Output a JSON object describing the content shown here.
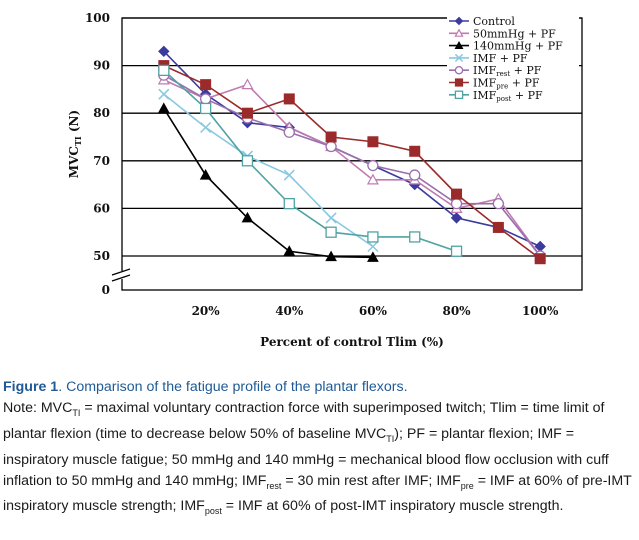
{
  "chart_data": {
    "type": "line",
    "x": [
      10,
      20,
      30,
      40,
      50,
      60,
      70,
      80,
      90,
      100
    ],
    "xticks": [
      {
        "value": 20,
        "label": "20%"
      },
      {
        "value": 40,
        "label": "40%"
      },
      {
        "value": 60,
        "label": "60%"
      },
      {
        "value": 80,
        "label": "80%"
      },
      {
        "value": 100,
        "label": "100%"
      }
    ],
    "yticks": [
      {
        "value": 50,
        "label": "50"
      },
      {
        "value": 60,
        "label": "60"
      },
      {
        "value": 70,
        "label": "70"
      },
      {
        "value": 80,
        "label": "80"
      },
      {
        "value": 90,
        "label": "90"
      },
      {
        "value": 100,
        "label": "100"
      }
    ],
    "y_zero_label": "0",
    "xlim": [
      0,
      110
    ],
    "ylim": [
      0,
      100
    ],
    "y_axis_break": true,
    "xlabel": "Percent of control Tlim (%)",
    "ylabel": {
      "main": "MVC",
      "sub": "TI",
      "unit": " (N)"
    },
    "grid": "horizontal",
    "legend_position": "top-right",
    "series": [
      {
        "name": "Control",
        "color": "#3b3b9e",
        "marker": "diamond",
        "x": [
          10,
          20,
          30,
          40,
          50,
          60,
          70,
          80,
          90,
          100
        ],
        "values": [
          93,
          84,
          78,
          77,
          73,
          69,
          65,
          58,
          56,
          52
        ]
      },
      {
        "name": "50mmHg + PF",
        "color": "#c07ab0",
        "marker": "triangle-open",
        "x": [
          10,
          20,
          30,
          40,
          50,
          60,
          70,
          80,
          90,
          100
        ],
        "values": [
          87,
          83,
          86,
          77,
          73,
          66,
          66,
          60,
          62,
          50
        ]
      },
      {
        "name": "140mmHg + PF",
        "color": "#000000",
        "marker": "triangle",
        "x": [
          10,
          20,
          30,
          40,
          50,
          60
        ],
        "values": [
          81,
          67,
          58,
          51,
          49,
          48
        ]
      },
      {
        "name": "IMF + PF",
        "color": "#88c8e0",
        "marker": "x",
        "x": [
          10,
          20,
          30,
          40,
          50,
          60
        ],
        "values": [
          84,
          77,
          71,
          67,
          58,
          52
        ]
      },
      {
        "name": "IMF",
        "name_sub": "rest",
        "name_suffix": " + PF",
        "color": "#9b6fae",
        "marker": "circle-open",
        "x": [
          10,
          20,
          30,
          40,
          50,
          60,
          70,
          80,
          90,
          100
        ],
        "values": [
          88,
          83,
          79,
          76,
          73,
          69,
          67,
          61,
          61,
          50
        ]
      },
      {
        "name": "IMF",
        "name_sub": "pre",
        "name_suffix": " + PF",
        "color": "#9b2a2a",
        "marker": "square",
        "x": [
          10,
          20,
          30,
          40,
          50,
          60,
          70,
          80,
          90,
          100
        ],
        "values": [
          90,
          86,
          80,
          83,
          75,
          74,
          72,
          63,
          56,
          46
        ]
      },
      {
        "name": "IMF",
        "name_sub": "post",
        "name_suffix": " + PF",
        "color": "#4fa3a3",
        "marker": "square-open",
        "x": [
          10,
          20,
          30,
          40,
          50,
          60,
          70,
          80
        ],
        "values": [
          89,
          81,
          70,
          61,
          55,
          54,
          54,
          51
        ]
      }
    ]
  },
  "caption": {
    "figure_label": "Figure 1",
    "title": ". Comparison of the fatigue profile of the plantar flexors.",
    "note_label": "Note:",
    "note": [
      {
        "t": " MVC"
      },
      {
        "s": "TI"
      },
      {
        "t": " = maximal voluntary contraction force with superimposed twitch; Tlim = time limit of plantar flexion (time to decrease below 50% of baseline MVC"
      },
      {
        "s": "TI"
      },
      {
        "t": "); PF = plantar flexion; IMF = inspiratory muscle fatigue; 50 mmHg and 140 mmHg = mechanical blood flow occlusion with cuff inflation to 50 mmHg and 140 mmHg; IMF"
      },
      {
        "s": "rest"
      },
      {
        "t": " = 30 min rest after IMF; IMF"
      },
      {
        "s": "pre"
      },
      {
        "t": " = IMF at 60% of pre-IMT inspiratory muscle strength; IMF"
      },
      {
        "s": "post"
      },
      {
        "t": " = IMF at 60% of post-IMT inspiratory muscle strength."
      }
    ]
  }
}
